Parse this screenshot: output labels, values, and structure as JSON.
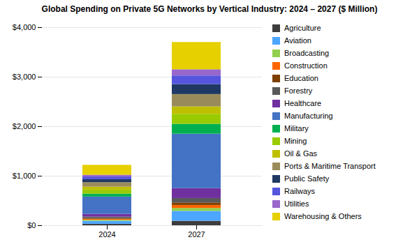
{
  "chart_data": {
    "type": "bar",
    "stacked": true,
    "title": "Global Spending on Private 5G Networks by Vertical Industry: 2024 – 2027 ($ Million)",
    "categories": [
      "2024",
      "2027"
    ],
    "series": [
      {
        "name": "Agriculture",
        "color": "#3d3d3d",
        "values": [
          30,
          90
        ]
      },
      {
        "name": "Aviation",
        "color": "#4da6ff",
        "values": [
          60,
          200
        ]
      },
      {
        "name": "Broadcasting",
        "color": "#92d050",
        "values": [
          20,
          60
        ]
      },
      {
        "name": "Construction",
        "color": "#ff6600",
        "values": [
          20,
          60
        ]
      },
      {
        "name": "Education",
        "color": "#7f3f00",
        "values": [
          15,
          50
        ]
      },
      {
        "name": "Forestry",
        "color": "#595959",
        "values": [
          30,
          90
        ]
      },
      {
        "name": "Healthcare",
        "color": "#7030a0",
        "values": [
          55,
          200
        ]
      },
      {
        "name": "Manufacturing",
        "color": "#4472c4",
        "values": [
          350,
          1100
        ]
      },
      {
        "name": "Military",
        "color": "#00b050",
        "values": [
          60,
          200
        ]
      },
      {
        "name": "Mining",
        "color": "#99cc00",
        "values": [
          80,
          200
        ]
      },
      {
        "name": "Oil & Gas",
        "color": "#bfbf00",
        "values": [
          60,
          150
        ]
      },
      {
        "name": "Ports & Maritime Transport",
        "color": "#9a8c5a",
        "values": [
          90,
          250
        ]
      },
      {
        "name": "Public Safety",
        "color": "#1f3864",
        "values": [
          60,
          200
        ]
      },
      {
        "name": "Railways",
        "color": "#5555dd",
        "values": [
          55,
          175
        ]
      },
      {
        "name": "Utilities",
        "color": "#9966cc",
        "values": [
          35,
          125
        ]
      },
      {
        "name": "Warehousing & Others",
        "color": "#e6d000",
        "values": [
          200,
          550
        ]
      }
    ],
    "ylim": [
      0,
      4000
    ],
    "yticks": [
      {
        "value": 0,
        "label": "$0"
      },
      {
        "value": 1000,
        "label": "$1,000"
      },
      {
        "value": 2000,
        "label": "$2,000"
      },
      {
        "value": 3000,
        "label": "$3,000"
      },
      {
        "value": 4000,
        "label": "$4,000"
      }
    ],
    "grid": true,
    "legend": "right"
  }
}
